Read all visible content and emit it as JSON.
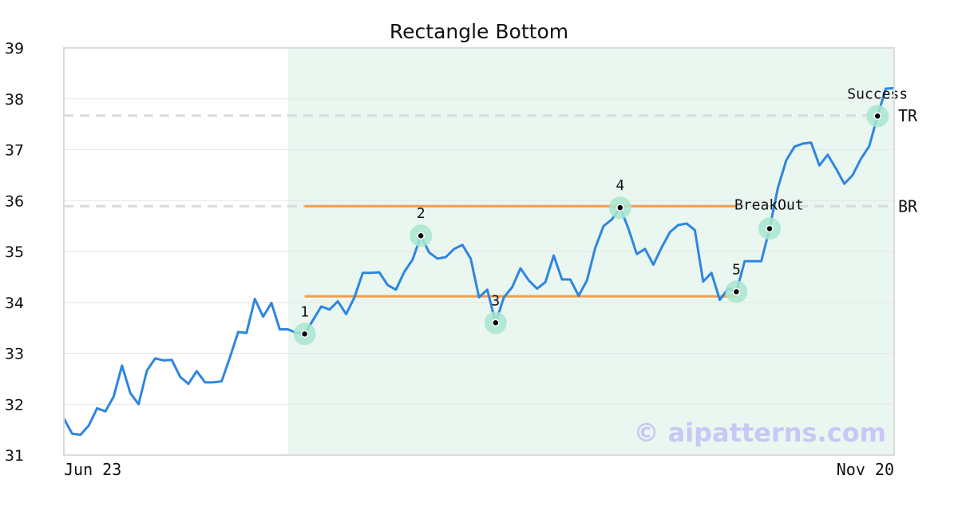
{
  "chart_data": {
    "type": "line",
    "title": "Rectangle Bottom",
    "xlabel": "",
    "ylabel": "",
    "ylim": [
      31,
      39
    ],
    "y_ticks": [
      31,
      32,
      33,
      34,
      35,
      36,
      37,
      38,
      39
    ],
    "x_tick_labels": [
      "Jun 23",
      "Nov 20"
    ],
    "grid": "horizontal",
    "colors": {
      "line": "#2e86de",
      "levels": "#f39c4a",
      "marker_halo": "#a8e6cf",
      "shade": "#eaf6f0",
      "ref_line": "#d8dcdc",
      "watermark": "#c8c8f5"
    },
    "series": [
      {
        "values": [
          31.72,
          31.42,
          31.4,
          31.58,
          31.92,
          31.86,
          32.15,
          32.76,
          32.22,
          32.0,
          32.66,
          32.9,
          32.86,
          32.87,
          32.54,
          32.4,
          32.65,
          32.43,
          32.43,
          32.45,
          32.92,
          33.42,
          33.4,
          34.07,
          33.72,
          33.99,
          33.47,
          33.47,
          33.4,
          33.38,
          33.65,
          33.92,
          33.86,
          34.02,
          33.77,
          34.1,
          34.58,
          34.58,
          34.59,
          34.34,
          34.25,
          34.6,
          34.84,
          35.31,
          34.98,
          34.86,
          34.89,
          35.05,
          35.13,
          34.86,
          34.1,
          34.25,
          33.6,
          34.1,
          34.3,
          34.67,
          34.43,
          34.27,
          34.4,
          34.92,
          34.45,
          34.45,
          34.13,
          34.43,
          35.07,
          35.5,
          35.63,
          35.86,
          35.45,
          34.95,
          35.05,
          34.74,
          35.08,
          35.38,
          35.52,
          35.55,
          35.42,
          34.41,
          34.58,
          34.05,
          34.27,
          34.21,
          34.81,
          34.81,
          34.81,
          35.45,
          36.25,
          36.79,
          37.06,
          37.12,
          37.14,
          36.69,
          36.9,
          36.63,
          36.33,
          36.5,
          36.82,
          37.07,
          37.66,
          38.2,
          38.21
        ]
      }
    ],
    "pattern_range": [
      27,
      100
    ],
    "levels": [
      {
        "name": "top",
        "value": 35.89,
        "from": 29,
        "to": 81
      },
      {
        "name": "bottom",
        "value": 34.12,
        "from": 29,
        "to": 81
      }
    ],
    "ref_lines": [
      {
        "label": "TR",
        "value": 37.67
      },
      {
        "label": "BR",
        "value": 35.89
      }
    ],
    "points": [
      {
        "label": "1",
        "index": 29,
        "value": 33.38
      },
      {
        "label": "2",
        "index": 43,
        "value": 35.31
      },
      {
        "label": "3",
        "index": 52,
        "value": 33.6
      },
      {
        "label": "4",
        "index": 67,
        "value": 35.86
      },
      {
        "label": "5",
        "index": 81,
        "value": 34.21
      },
      {
        "label": "BreakOut",
        "index": 85,
        "value": 35.45
      },
      {
        "label": "Success",
        "index": 98,
        "value": 37.66
      }
    ],
    "watermark": "© aipatterns.com"
  }
}
